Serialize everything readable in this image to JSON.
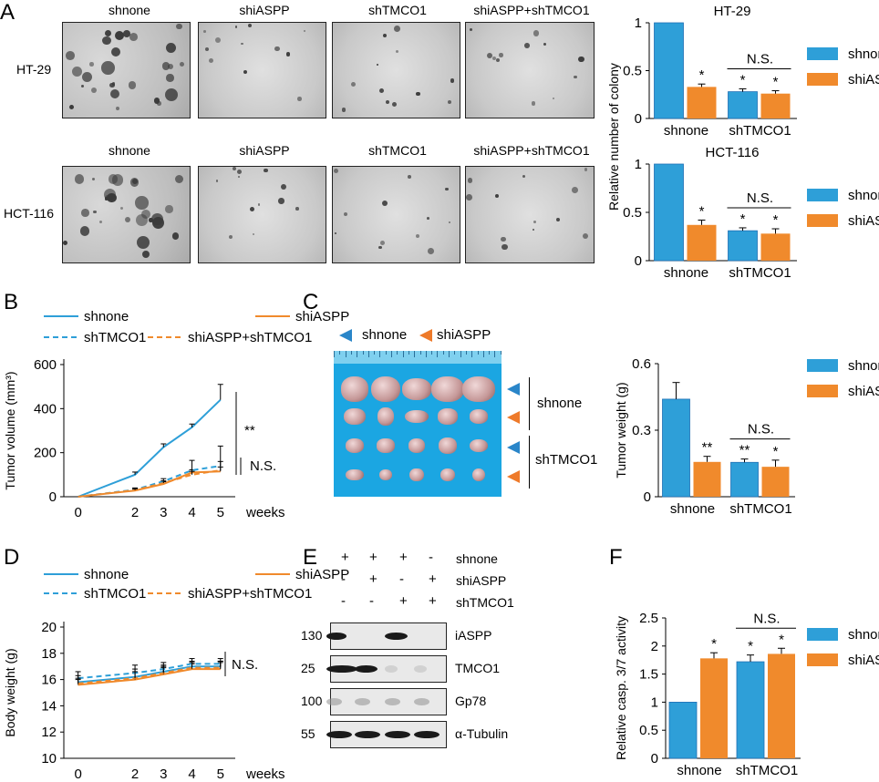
{
  "panels": {
    "A": "A",
    "B": "B",
    "C": "C",
    "D": "D",
    "E": "E",
    "F": "F"
  },
  "panelA": {
    "columns": [
      "shnone",
      "shiASPP",
      "shTMCO1",
      "shiASPP+shTMCO1"
    ],
    "rows": [
      "HT-29",
      "HCT-116"
    ]
  },
  "colors": {
    "blue": "#2e9fd8",
    "orange": "#f08a2c",
    "dark_blue": "#1f6fb5"
  },
  "chart_data": [
    {
      "type": "bar",
      "id": "A-HT29",
      "title": "HT-29",
      "categories": [
        "shnone",
        "shTMCO1"
      ],
      "series": [
        {
          "name": "shnone",
          "values": [
            1,
            0.28
          ],
          "errors": [
            0,
            0.03
          ]
        },
        {
          "name": "shiASPP",
          "values": [
            0.33,
            0.26
          ],
          "errors": [
            0.03,
            0.03
          ]
        }
      ],
      "sig": [
        "",
        "*",
        "*",
        "*"
      ],
      "bracket": "N.S.",
      "yticks": [
        "0",
        "0.5",
        "1"
      ],
      "ylim": [
        0,
        1
      ],
      "ylabel": "Relative number of colony",
      "legend": "right"
    },
    {
      "type": "bar",
      "id": "A-HCT116",
      "title": "HCT-116",
      "categories": [
        "shnone",
        "shTMCO1"
      ],
      "series": [
        {
          "name": "shnone",
          "values": [
            1,
            0.31
          ],
          "errors": [
            0,
            0.03
          ]
        },
        {
          "name": "shiASPP",
          "values": [
            0.37,
            0.28
          ],
          "errors": [
            0.05,
            0.05
          ]
        }
      ],
      "sig": [
        "",
        "*",
        "*",
        "*"
      ],
      "bracket": "N.S.",
      "yticks": [
        "0",
        "0.5",
        "1"
      ],
      "ylim": [
        0,
        1
      ],
      "ylabel": "",
      "legend": "right"
    },
    {
      "type": "line",
      "id": "B",
      "x": [
        0,
        2,
        3,
        4,
        5
      ],
      "xticks": [
        "0",
        "2",
        "3",
        "4",
        "5"
      ],
      "xlabel": "weeks",
      "ylabel": "Tumor volume (mm³)",
      "yticks": [
        "0",
        "200",
        "400",
        "600"
      ],
      "ylim": [
        0,
        600
      ],
      "series": [
        {
          "name": "shnone",
          "values": [
            0,
            100,
            225,
            315,
            440
          ],
          "errors": [
            0,
            12,
            15,
            15,
            70
          ],
          "style": "solid",
          "color": "#2e9fd8"
        },
        {
          "name": "shiASPP",
          "values": [
            0,
            28,
            58,
            110,
            115
          ],
          "errors": [
            0,
            6,
            10,
            12,
            20
          ],
          "style": "solid",
          "color": "#f08a2c"
        },
        {
          "name": "shTMCO1",
          "values": [
            0,
            32,
            70,
            120,
            140
          ],
          "errors": [
            0,
            8,
            12,
            45,
            90
          ],
          "style": "dashed",
          "color": "#2e9fd8"
        },
        {
          "name": "shiASPP+shTMCO1",
          "values": [
            0,
            30,
            62,
            100,
            120
          ],
          "errors": [
            0,
            6,
            10,
            15,
            40
          ],
          "style": "dashed",
          "color": "#f08a2c"
        }
      ],
      "sig": [
        "**",
        "N.S."
      ]
    },
    {
      "type": "bar",
      "id": "C",
      "categories": [
        "shnone",
        "shTMCO1"
      ],
      "series": [
        {
          "name": "shnone",
          "values": [
            0.44,
            0.155
          ],
          "errors": [
            0.075,
            0.015
          ]
        },
        {
          "name": "shiASPP",
          "values": [
            0.157,
            0.135
          ],
          "errors": [
            0.025,
            0.03
          ]
        }
      ],
      "sig": [
        "",
        "**",
        "**",
        "*"
      ],
      "bracket": "N.S.",
      "yticks": [
        "0",
        "0.3",
        "0.6"
      ],
      "ylim": [
        0,
        0.6
      ],
      "ylabel": "Tumor weight (g)",
      "legend": "right"
    },
    {
      "type": "line",
      "id": "D",
      "x": [
        0,
        2,
        3,
        4,
        5
      ],
      "xticks": [
        "0",
        "2",
        "3",
        "4",
        "5"
      ],
      "xlabel": "weeks",
      "ylabel": "Body weight (g)",
      "yticks": [
        "10",
        "12",
        "14",
        "16",
        "18",
        "20"
      ],
      "ylim": [
        10,
        20
      ],
      "series": [
        {
          "name": "shnone",
          "values": [
            15.8,
            16.2,
            16.6,
            17.0,
            17.0
          ],
          "errors": [
            0.5,
            0.6,
            0.5,
            0.4,
            0.4
          ],
          "style": "solid",
          "color": "#2e9fd8"
        },
        {
          "name": "shiASPP",
          "values": [
            15.6,
            16.0,
            16.4,
            16.8,
            16.8
          ],
          "errors": [
            0.4,
            0.5,
            0.5,
            0.4,
            0.5
          ],
          "style": "solid",
          "color": "#f08a2c"
        },
        {
          "name": "shTMCO1",
          "values": [
            16.1,
            16.5,
            16.8,
            17.2,
            17.2
          ],
          "errors": [
            0.5,
            0.6,
            0.5,
            0.4,
            0.4
          ],
          "style": "dashed",
          "color": "#2e9fd8"
        },
        {
          "name": "shiASPP+shTMCO1",
          "values": [
            15.7,
            16.1,
            16.5,
            16.9,
            16.9
          ],
          "errors": [
            0.4,
            0.5,
            0.5,
            0.4,
            0.5
          ],
          "style": "dashed",
          "color": "#f08a2c"
        }
      ],
      "sig": [
        "N.S."
      ]
    },
    {
      "type": "bar",
      "id": "F",
      "categories": [
        "shnone",
        "shTMCO1"
      ],
      "series": [
        {
          "name": "shnone",
          "values": [
            1,
            1.72
          ],
          "errors": [
            0,
            0.12
          ]
        },
        {
          "name": "shiASPP",
          "values": [
            1.78,
            1.86
          ],
          "errors": [
            0.1,
            0.1
          ]
        }
      ],
      "sig": [
        "",
        "*",
        "*",
        "*"
      ],
      "bracket": "N.S.",
      "yticks": [
        "0",
        "0.5",
        "1",
        "1.5",
        "2",
        "2.5"
      ],
      "ylim": [
        0,
        2.5
      ],
      "ylabel": "Relative casp. 3/7 activity",
      "legend": "right"
    }
  ],
  "panelC": {
    "legend": [
      "shnone",
      "shiASPP"
    ],
    "groups": [
      "shnone",
      "shTMCO1"
    ]
  },
  "panelE": {
    "conditions": [
      {
        "label": "shnone",
        "marks": [
          "+",
          "+",
          "+",
          "-"
        ]
      },
      {
        "label": "shiASPP",
        "marks": [
          "-",
          "+",
          "-",
          "+"
        ]
      },
      {
        "label": "shTMCO1",
        "marks": [
          "-",
          "-",
          "+",
          "+"
        ]
      }
    ],
    "blots": [
      {
        "mw": "130",
        "label": "iASPP"
      },
      {
        "mw": "25",
        "label": "TMCO1"
      },
      {
        "mw": "100",
        "label": "Gp78"
      },
      {
        "mw": "55",
        "label": "α-Tubulin"
      }
    ]
  }
}
